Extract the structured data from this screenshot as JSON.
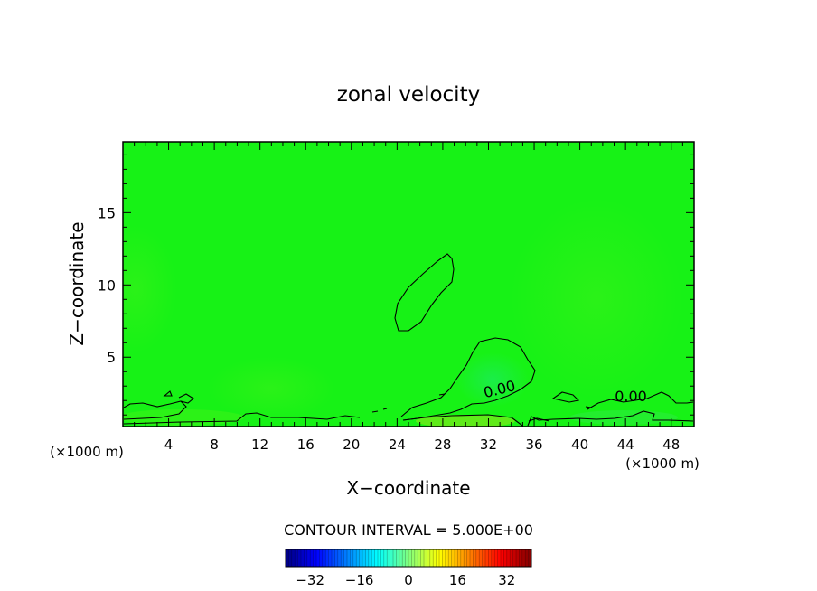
{
  "chart_data": {
    "type": "heatmap",
    "title": "zonal velocity",
    "xlabel": "X−coordinate",
    "ylabel": "Z−coordinate",
    "x_unit_left": "(×1000 m)",
    "x_unit_right": "(×1000 m)",
    "xlim": [
      0,
      50
    ],
    "ylim": [
      0.2,
      19.9
    ],
    "xticks": [
      4,
      8,
      12,
      16,
      20,
      24,
      28,
      32,
      36,
      40,
      44,
      48
    ],
    "yticks": [
      5,
      10,
      15
    ],
    "contour_interval_label": "CONTOUR INTERVAL = 5.000E+00",
    "contour_labels": [
      {
        "text": "0.00",
        "x": 33.5,
        "z": 2.7
      },
      {
        "text": "0.00",
        "x": 44.5,
        "z": 2.2
      }
    ],
    "colorbar": {
      "range": [
        -40,
        40
      ],
      "ticks": [
        -32,
        -16,
        0,
        16,
        32
      ],
      "tick_labels": [
        "−32",
        "−16",
        "0",
        "16",
        "32"
      ]
    },
    "dominant_value": 0,
    "grid": false
  }
}
